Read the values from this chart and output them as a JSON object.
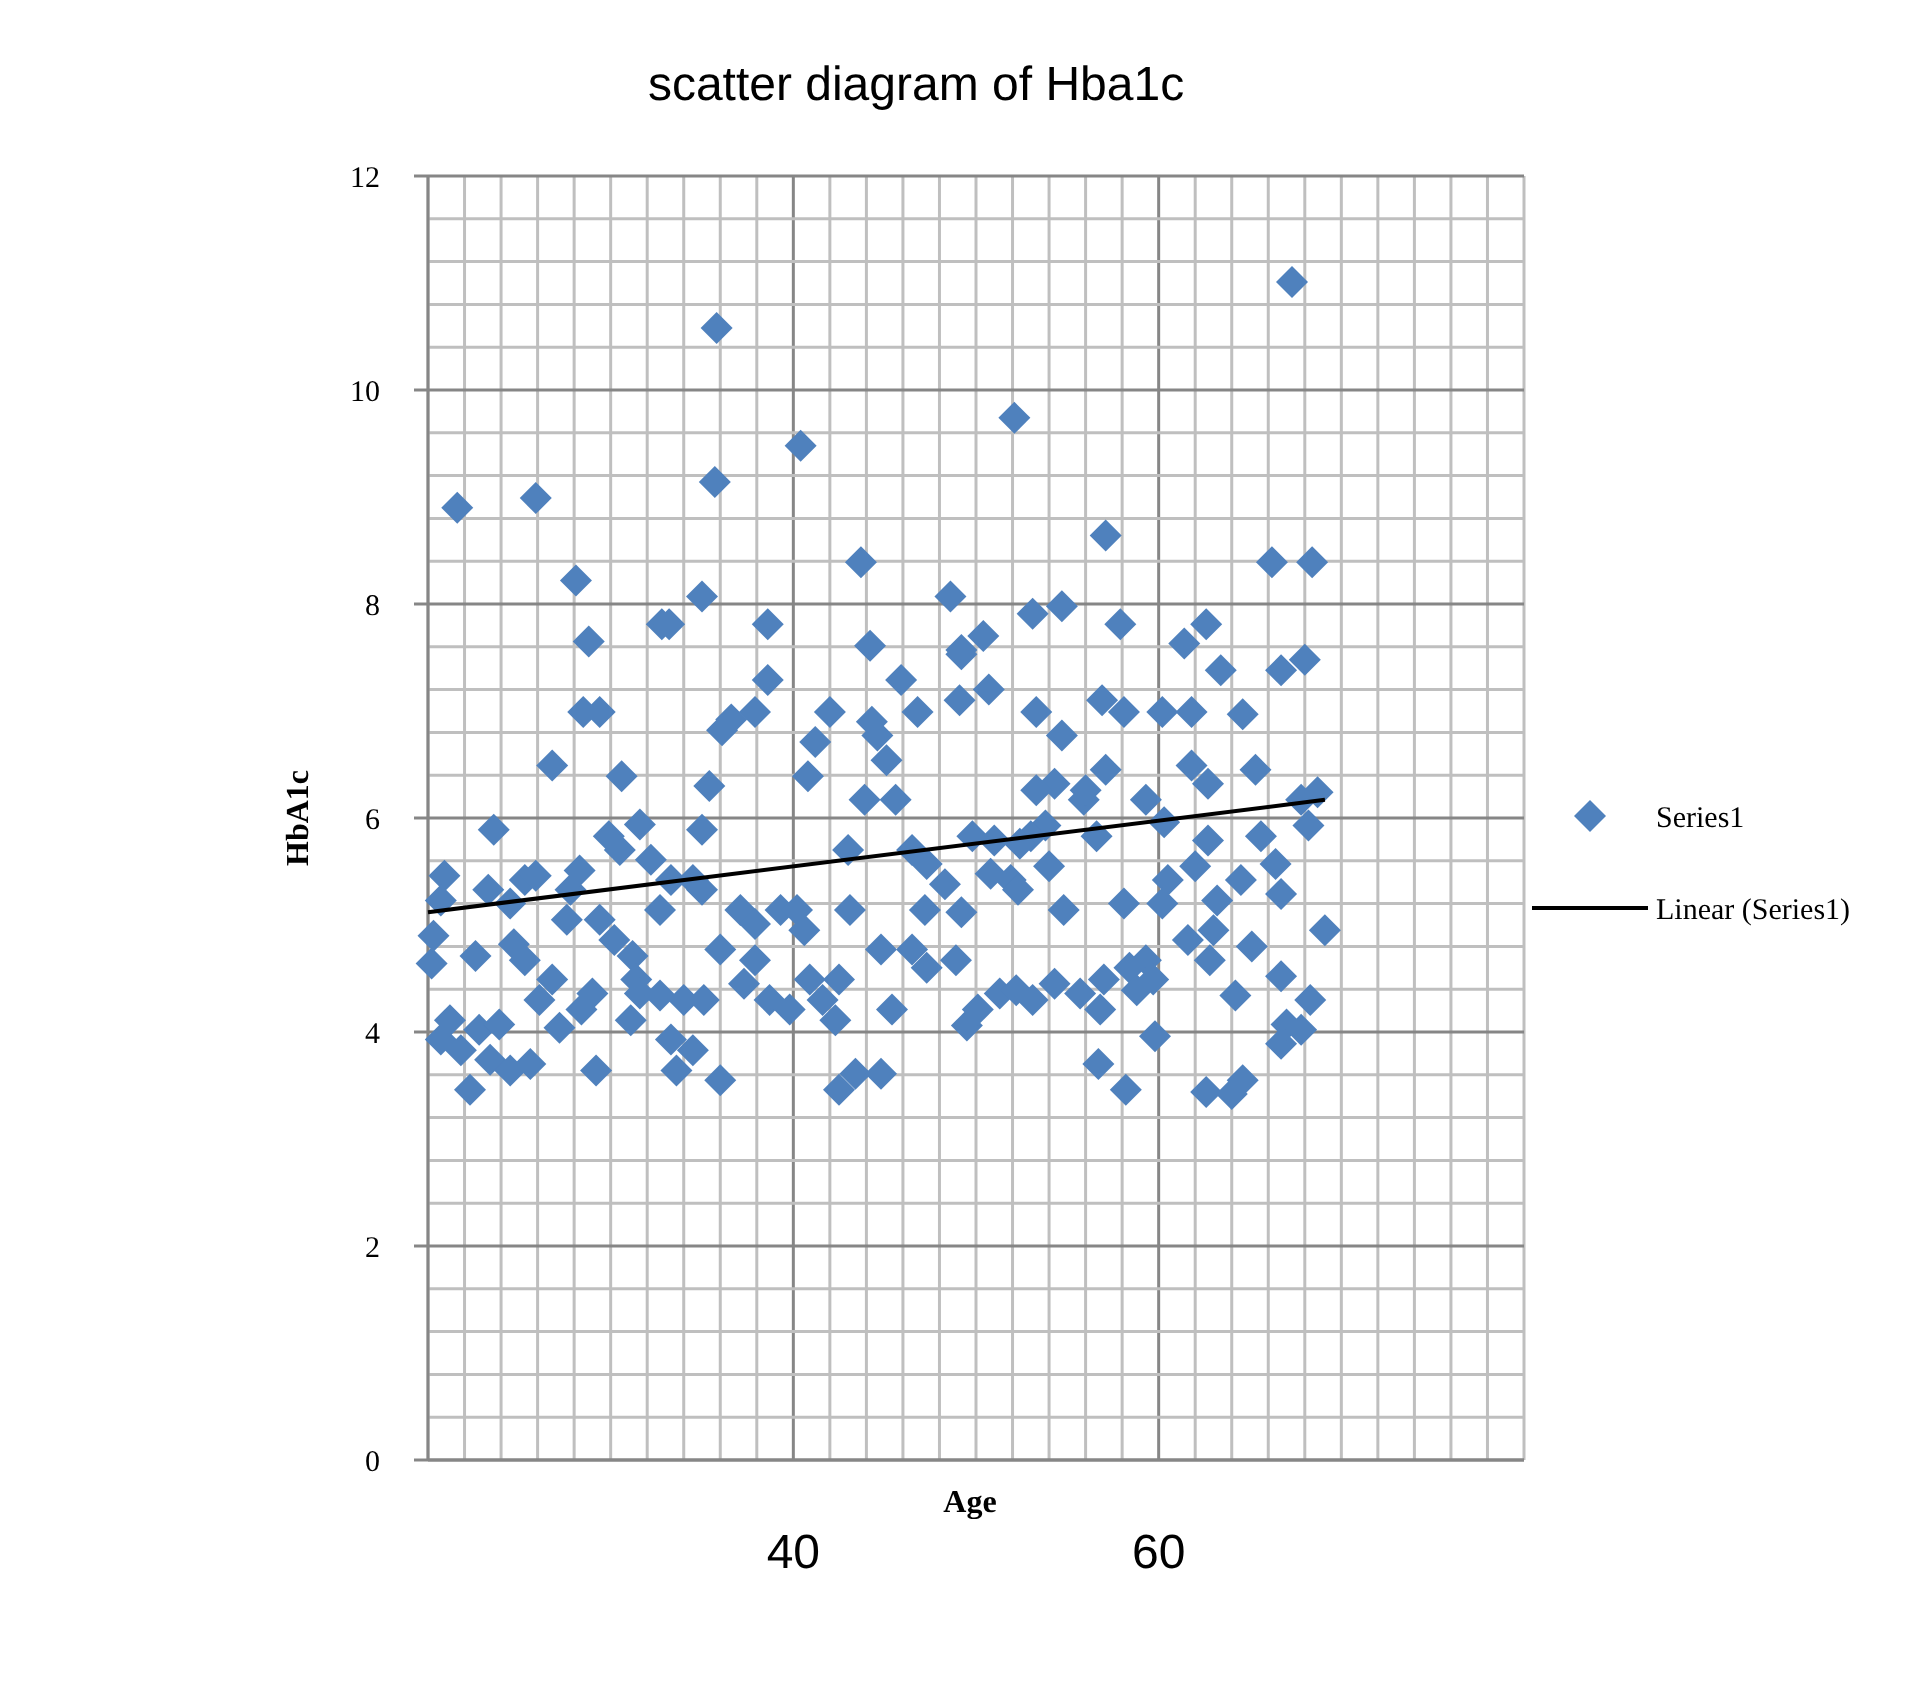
{
  "chart_data": {
    "type": "scatter",
    "title": "scatter diagram of Hba1c",
    "xlabel": "Age",
    "ylabel": "HbA1c",
    "xlim": [
      20,
      80
    ],
    "xticks": [
      {
        "value": 20,
        "label": null
      },
      {
        "value": 22,
        "label": null
      },
      {
        "value": 24,
        "label": null
      },
      {
        "value": 26,
        "label": null
      },
      {
        "value": 28,
        "label": null
      },
      {
        "value": 30,
        "label": null
      },
      {
        "value": 32,
        "label": null
      },
      {
        "value": 34,
        "label": null
      },
      {
        "value": 36,
        "label": null
      },
      {
        "value": 38,
        "label": null
      },
      {
        "value": 40,
        "label": "40"
      },
      {
        "value": 42,
        "label": null
      },
      {
        "value": 44,
        "label": null
      },
      {
        "value": 46,
        "label": null
      },
      {
        "value": 48,
        "label": null
      },
      {
        "value": 50,
        "label": null
      },
      {
        "value": 52,
        "label": null
      },
      {
        "value": 54,
        "label": null
      },
      {
        "value": 56,
        "label": null
      },
      {
        "value": 58,
        "label": null
      },
      {
        "value": 60,
        "label": "60"
      },
      {
        "value": 62,
        "label": null
      },
      {
        "value": 64,
        "label": null
      },
      {
        "value": 66,
        "label": null
      },
      {
        "value": 68,
        "label": null
      },
      {
        "value": 70,
        "label": null
      },
      {
        "value": 72,
        "label": null
      },
      {
        "value": 74,
        "label": null
      },
      {
        "value": 76,
        "label": null
      },
      {
        "value": 78,
        "label": null
      },
      {
        "value": 80,
        "label": null
      }
    ],
    "ylim": [
      0,
      12
    ],
    "yticks": [
      0,
      {
        "value": 0.4,
        "label": null
      },
      {
        "value": 0.8,
        "label": null
      },
      {
        "value": 1.2,
        "label": null
      },
      {
        "value": 1.6,
        "label": null
      },
      2,
      {
        "value": 2.4,
        "label": null
      },
      {
        "value": 2.8,
        "label": null
      },
      {
        "value": 3.2,
        "label": null
      },
      {
        "value": 3.6,
        "label": null
      },
      4,
      {
        "value": 4.4,
        "label": null
      },
      {
        "value": 4.8,
        "label": null
      },
      {
        "value": 5.2,
        "label": null
      },
      {
        "value": 5.6,
        "label": null
      },
      6,
      {
        "value": 6.4,
        "label": null
      },
      {
        "value": 6.8,
        "label": null
      },
      {
        "value": 7.2,
        "label": null
      },
      {
        "value": 7.6,
        "label": null
      },
      8,
      {
        "value": 8.4,
        "label": null
      },
      {
        "value": 8.8,
        "label": null
      },
      {
        "value": 9.2,
        "label": null
      },
      {
        "value": 9.6,
        "label": null
      },
      10,
      {
        "value": 10.4,
        "label": null
      },
      {
        "value": 10.8,
        "label": null
      },
      {
        "value": 11.2,
        "label": null
      },
      {
        "value": 11.6,
        "label": null
      },
      12
    ],
    "grid": true,
    "legend": "right",
    "marker": "diamond",
    "series": [
      {
        "name": "Series1",
        "color": "#4f81bd",
        "x": [
          21.6,
          25.9,
          28.1,
          28.8,
          35.8,
          35.7,
          40.4,
          35.0,
          32.8,
          33.2,
          38.6,
          43.7,
          48.6,
          52.1,
          57.1,
          54.7,
          67.3,
          66.2,
          68.4,
          62.6,
          53.1,
          50.4,
          49.2,
          57.9,
          66.7,
          68.0,
          63.4,
          44.2,
          38.6,
          37.9,
          36.6,
          28.5,
          29.4,
          26.8,
          30.6,
          35.4,
          36.1,
          42.0,
          41.2,
          40.8,
          44.3,
          45.9,
          46.8,
          45.1,
          44.6,
          45.6,
          49.1,
          50.7,
          49.2,
          53.3,
          54.7,
          54.3,
          56.9,
          58.1,
          60.2,
          61.8,
          64.6,
          61.4,
          57.1,
          55.9,
          59.3,
          61.8,
          62.7,
          60.3,
          62.7,
          65.3,
          68.7,
          68.2,
          67.8,
          65.6,
          66.4,
          60.5,
          62.0,
          63.2,
          64.5,
          66.7,
          65.1,
          63.0,
          62.8,
          61.6,
          60.2,
          59.3,
          58.4,
          59.7,
          58.8,
          59.8,
          56.6,
          56.0,
          53.8,
          53.0,
          52.4,
          51.0,
          49.8,
          51.9,
          52.3,
          50.8,
          54.0,
          53.3,
          49.2,
          48.3,
          47.3,
          46.5,
          47.2,
          46.5,
          47.3,
          48.9,
          49.5,
          50.1,
          51.3,
          52.2,
          53.1,
          54.3,
          55.7,
          57.0,
          56.8,
          56.7,
          58.2,
          54.8,
          58.1,
          62.6,
          64.0,
          64.6,
          66.7,
          67.0,
          68.3,
          69.1,
          66.7,
          67.8,
          64.2,
          20.2,
          20.3,
          20.9,
          20.7,
          20.7,
          21.2,
          21.8,
          22.3,
          22.8,
          23.4,
          23.9,
          24.5,
          22.6,
          23.6,
          23.3,
          24.5,
          25.3,
          25.9,
          24.7,
          25.3,
          25.6,
          26.1,
          26.8,
          27.2,
          27.8,
          28.3,
          27.6,
          28.4,
          29.0,
          29.2,
          29.9,
          30.5,
          29.4,
          30.2,
          31.2,
          31.4,
          31.6,
          31.1,
          31.6,
          32.2,
          32.7,
          33.3,
          32.7,
          34.0,
          33.3,
          33.6,
          34.5,
          35.0,
          34.5,
          35.0,
          36.0,
          35.1,
          36.0,
          37.1,
          37.9,
          37.9,
          37.3,
          38.7,
          39.8,
          39.3,
          40.2,
          40.6,
          40.9,
          41.6,
          42.3,
          42.5,
          43.4,
          42.5,
          43.1,
          43.0,
          43.9,
          44.8,
          45.4,
          44.8
        ],
        "values": [
          8.9,
          8.99,
          8.22,
          7.65,
          10.58,
          9.14,
          9.48,
          8.07,
          7.81,
          7.81,
          7.81,
          8.39,
          8.07,
          9.74,
          8.64,
          7.98,
          11.01,
          8.39,
          8.39,
          7.81,
          7.91,
          7.7,
          7.57,
          7.81,
          7.38,
          7.48,
          7.38,
          7.61,
          7.29,
          6.99,
          6.92,
          6.99,
          6.99,
          6.49,
          6.39,
          6.3,
          6.82,
          6.99,
          6.71,
          6.39,
          6.9,
          7.29,
          6.99,
          6.54,
          6.77,
          6.17,
          7.1,
          7.2,
          7.53,
          6.99,
          6.77,
          6.32,
          7.1,
          6.99,
          6.99,
          6.99,
          6.97,
          7.63,
          6.45,
          6.17,
          6.17,
          6.49,
          6.32,
          5.96,
          5.79,
          6.45,
          6.24,
          5.93,
          6.17,
          5.83,
          5.57,
          5.42,
          5.55,
          5.23,
          5.42,
          5.29,
          4.8,
          4.95,
          4.67,
          4.86,
          5.2,
          4.67,
          4.6,
          4.49,
          4.39,
          3.96,
          5.83,
          6.26,
          5.93,
          5.83,
          5.76,
          5.79,
          5.83,
          5.42,
          5.33,
          5.48,
          5.55,
          6.26,
          5.12,
          5.38,
          5.57,
          5.7,
          5.14,
          4.77,
          4.6,
          4.67,
          4.06,
          4.21,
          4.36,
          4.39,
          4.3,
          4.45,
          4.36,
          4.49,
          4.21,
          3.7,
          3.46,
          5.14,
          5.2,
          3.44,
          3.42,
          3.55,
          3.89,
          4.07,
          4.3,
          4.95,
          4.52,
          4.02,
          4.34,
          4.64,
          4.9,
          5.46,
          5.23,
          3.93,
          4.11,
          3.83,
          3.46,
          4.02,
          3.74,
          4.07,
          3.64,
          4.71,
          5.89,
          5.33,
          5.2,
          5.42,
          5.46,
          4.82,
          4.67,
          3.7,
          4.3,
          4.49,
          4.04,
          5.33,
          5.51,
          5.05,
          4.21,
          4.36,
          3.64,
          5.83,
          5.7,
          5.05,
          4.86,
          4.71,
          4.49,
          4.36,
          4.11,
          5.94,
          5.61,
          5.14,
          5.42,
          4.34,
          4.3,
          3.93,
          3.64,
          3.83,
          5.89,
          5.42,
          5.33,
          4.77,
          4.3,
          3.55,
          5.14,
          5.01,
          4.67,
          4.45,
          4.3,
          4.21,
          5.14,
          5.14,
          4.95,
          4.49,
          4.3,
          4.11,
          3.46,
          3.61,
          4.49,
          5.14,
          5.7,
          6.17,
          4.77,
          4.21,
          3.61
        ]
      },
      {
        "name": "Linear (Series1)",
        "type": "line",
        "color": "#000000",
        "marker": "none",
        "x": [
          20,
          69.1
        ],
        "values": [
          5.12,
          6.17
        ]
      }
    ]
  }
}
